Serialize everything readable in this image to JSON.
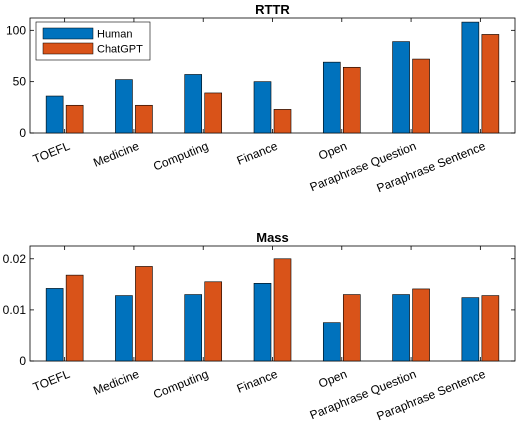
{
  "chart_data": [
    {
      "type": "bar",
      "title": "RTTR",
      "categories": [
        "TOEFL",
        "Medicine",
        "Computing",
        "Finance",
        "Open",
        "Paraphrase Question",
        "Paraphrase Sentence"
      ],
      "series": [
        {
          "name": "Human",
          "color": "#0072BD",
          "values": [
            36,
            52,
            57,
            50,
            69,
            89,
            108
          ]
        },
        {
          "name": "ChatGPT",
          "color": "#D95319",
          "values": [
            27,
            27,
            39,
            23,
            64,
            72,
            96
          ]
        }
      ],
      "ylim": [
        0,
        112
      ],
      "yticks": [
        0,
        50,
        100
      ],
      "ytick_labels": [
        "0",
        "50",
        "100"
      ],
      "legend": "top-left",
      "grid": false
    },
    {
      "type": "bar",
      "title": "Mass",
      "categories": [
        "TOEFL",
        "Medicine",
        "Computing",
        "Finance",
        "Open",
        "Paraphrase Question",
        "Paraphrase Sentence"
      ],
      "series": [
        {
          "name": "Human",
          "color": "#0072BD",
          "values": [
            0.0142,
            0.0128,
            0.013,
            0.0152,
            0.0075,
            0.013,
            0.0124
          ]
        },
        {
          "name": "ChatGPT",
          "color": "#D95319",
          "values": [
            0.0168,
            0.0185,
            0.0155,
            0.02,
            0.013,
            0.0141,
            0.0128
          ]
        }
      ],
      "ylim": [
        0,
        0.0225
      ],
      "yticks": [
        0,
        0.01,
        0.02
      ],
      "ytick_labels": [
        "0",
        "0.01",
        "0.02"
      ],
      "grid": false
    }
  ]
}
